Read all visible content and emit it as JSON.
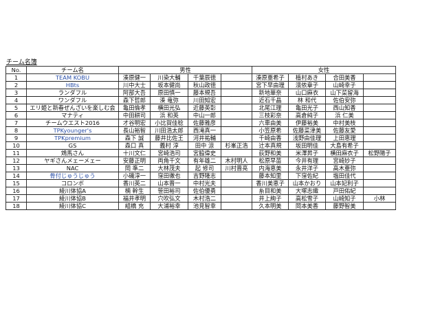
{
  "title": "チーム名簿",
  "headers": {
    "no": "No.",
    "team": "チーム名",
    "male": "男性",
    "female": "女性"
  },
  "rows": [
    {
      "no": "1",
      "team": "TEAM KOBU",
      "team_color": "blue",
      "male": [
        "湊原健一",
        "川染大輔",
        "千葉辰徳",
        ""
      ],
      "female": [
        "湊原亜希子",
        "植村あき",
        "合田美香",
        ""
      ]
    },
    {
      "no": "2",
      "team": "HBts",
      "team_color": "blue",
      "male": [
        "川中大士",
        "坂本健尚",
        "秋山政徳",
        ""
      ],
      "female": [
        "宮下早由理",
        "濱依章子",
        "山崎幸子",
        ""
      ]
    },
    {
      "no": "3",
      "team": "ランダフル",
      "male": [
        "阿部大吾",
        "原田慎一",
        "藤本規吾",
        ""
      ],
      "female": [
        "新地華奈",
        "山口麻衣",
        "山下菜留海",
        ""
      ]
    },
    {
      "no": "4",
      "team": "ワンダフル",
      "male": [
        "森下哲郎",
        "湊 竜弥",
        "川田知宏",
        ""
      ],
      "female": [
        "近石千晶",
        "林 和代",
        "佐伯安弥",
        ""
      ]
    },
    {
      "no": "5",
      "team": "エリ姫と新春ぜんざいを楽しむ会",
      "male": [
        "亀田倫孝",
        "横田光弘",
        "近藤英彰",
        ""
      ],
      "female": [
        "北尾江理",
        "亀田光子",
        "西山知香",
        ""
      ]
    },
    {
      "no": "6",
      "team": "マナティ",
      "male": [
        "中田耕司",
        "浜 和英",
        "中山一郎",
        ""
      ],
      "female": [
        "三枝彩奈",
        "高倉純子",
        "浜 仁美",
        ""
      ]
    },
    {
      "no": "7",
      "team": "チームウエスト2016",
      "male": [
        "才谷明宏",
        "小比賀佳稔",
        "佐藤雅彦",
        ""
      ],
      "female": [
        "六車由美",
        "伊藤裕美",
        "中村美枝",
        ""
      ]
    },
    {
      "no": "8",
      "team": "TPKyounger's",
      "team_color": "blue",
      "male": [
        "長山裕智",
        "川田浩太郎",
        "西滝真一",
        ""
      ],
      "female": [
        "小笠原希",
        "佐藤菜津美",
        "佐藤友愛",
        ""
      ]
    },
    {
      "no": "9",
      "team": "TPKpremium",
      "team_color": "blue",
      "male": [
        "森下 誠",
        "藤井比佐王",
        "河井祐輔",
        ""
      ],
      "female": [
        "千崎由香",
        "浅野由佳理",
        "上田恵理",
        ""
      ]
    },
    {
      "no": "10",
      "team": "GS",
      "male": [
        "森口 真",
        "義村 淳",
        "田中 涼",
        "杉峯正浩"
      ],
      "female": [
        "辻本真規",
        "坂田明佳",
        "大島有希子",
        ""
      ]
    },
    {
      "no": "11",
      "team": "鴆馬さん",
      "male": [
        "十川文仁",
        "宮崎浩司",
        "宮脇偉史",
        ""
      ],
      "female": [
        "荻野和美",
        "米澤昇子",
        "横田麻衣子",
        "松野陽子"
      ]
    },
    {
      "no": "12",
      "team": "ヤギさんメェーメェー",
      "male": [
        "安藤正明",
        "両角千文",
        "有年雄二",
        "木村明人"
      ],
      "female": [
        "松原早苗",
        "今井有理",
        "宮崎妙子",
        ""
      ]
    },
    {
      "no": "13",
      "team": "NAC",
      "male": [
        "岡 準二",
        "大林茂夫",
        "起 修司",
        "川村晋亮"
      ],
      "female": [
        "内海恵美",
        "永井洋子",
        "高木亜弥",
        ""
      ]
    },
    {
      "no": "14",
      "team": "骨付じゅうじゅう",
      "team_color": "blue",
      "male": [
        "小磯淳一",
        "窪田徹也",
        "吉野隆志",
        ""
      ],
      "female": [
        "藤本知里",
        "下窪佐紀",
        "塩田佳代",
        ""
      ]
    },
    {
      "no": "15",
      "team": "コロンボ",
      "male": [
        "香川英二",
        "山本晋一",
        "中村光夫",
        ""
      ],
      "female": [
        "香川美恵子",
        "山本かおり",
        "山本妃利子",
        ""
      ]
    },
    {
      "no": "16",
      "team": "綾川体協A",
      "male": [
        "楠 幹生",
        "笹田裕司",
        "佐伯優勇",
        ""
      ],
      "female": [
        "糸目和美",
        "大塚志織",
        "戸田佑紀",
        ""
      ]
    },
    {
      "no": "17",
      "team": "綾川体協B",
      "male": [
        "福井孝明",
        "穴吹弘文",
        "木村浩二",
        ""
      ],
      "female": [
        "井上絢子",
        "高松雪子",
        "山崎知子",
        "小林"
      ]
    },
    {
      "no": "18",
      "team": "綾川体協C",
      "male": [
        "組橋 充",
        "大浦裕幸",
        "池見智幸",
        ""
      ],
      "female": [
        "久本明美",
        "岡本美香",
        "藤野智美",
        ""
      ]
    }
  ]
}
